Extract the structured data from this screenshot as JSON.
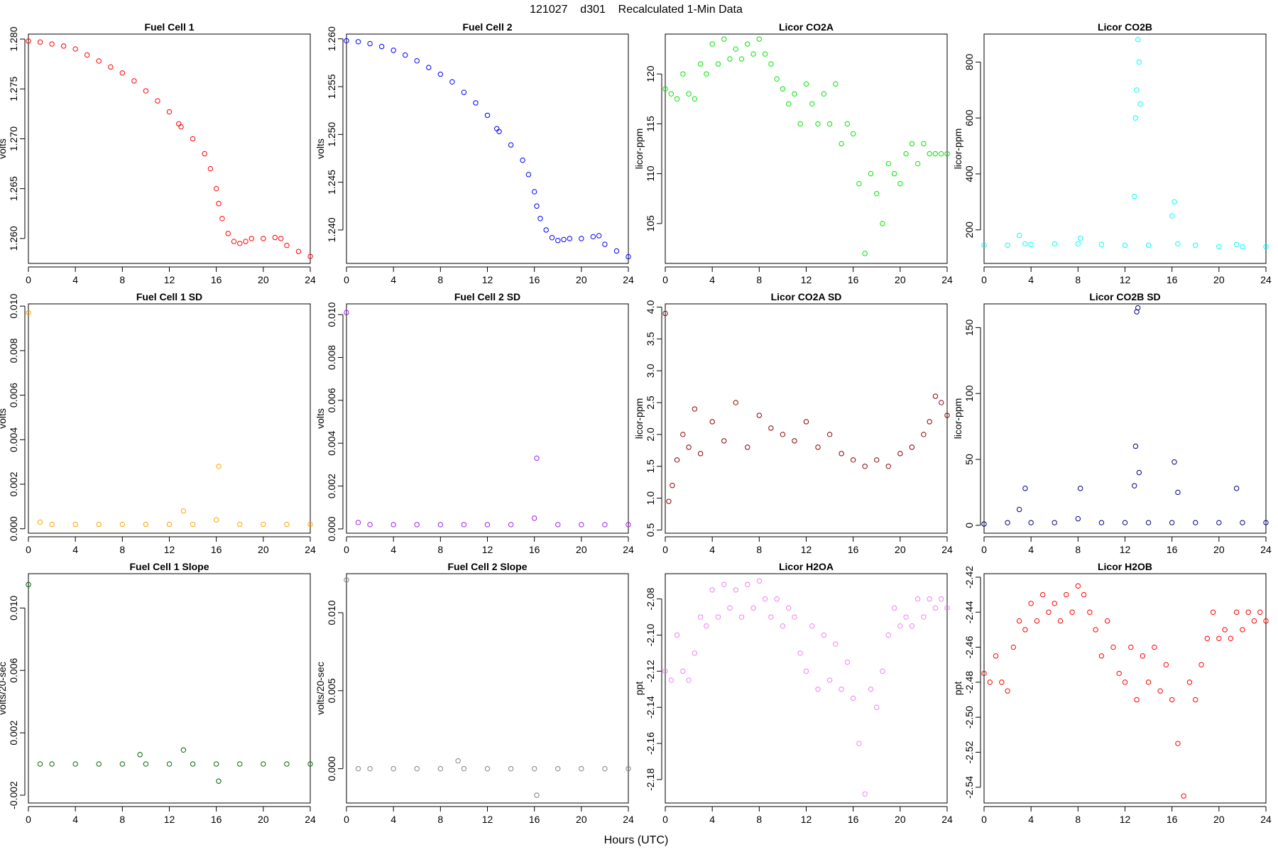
{
  "figure": {
    "title": "121027    d301    Recalculated 1-Min Data",
    "xlabel": "Hours (UTC)"
  },
  "chart_data": [
    {
      "type": "scatter",
      "title": "Fuel Cell 1",
      "ylabel": "volts",
      "color": "#ff0000",
      "xlim": [
        0,
        24
      ],
      "ylim": [
        1.2575,
        1.2805
      ],
      "xticks": [
        0,
        4,
        8,
        12,
        16,
        20,
        24
      ],
      "yticks": [
        1.26,
        1.265,
        1.27,
        1.275,
        1.28
      ],
      "ytick_labels": [
        "1.260",
        "1.265",
        "1.270",
        "1.275",
        "1.280"
      ],
      "x": [
        0,
        1,
        2,
        3,
        4,
        5,
        6,
        7,
        8,
        9,
        10,
        11,
        12,
        12.8,
        13,
        14,
        15,
        15.5,
        16,
        16.2,
        16.5,
        17,
        17.5,
        18,
        18.5,
        19,
        20,
        21,
        21.5,
        22,
        23,
        24
      ],
      "y": [
        1.2798,
        1.2797,
        1.2795,
        1.2793,
        1.279,
        1.2784,
        1.2778,
        1.2772,
        1.2766,
        1.2758,
        1.2748,
        1.2738,
        1.2727,
        1.2715,
        1.2712,
        1.27,
        1.2685,
        1.267,
        1.265,
        1.2635,
        1.262,
        1.2605,
        1.2597,
        1.2595,
        1.2597,
        1.26,
        1.26,
        1.2601,
        1.26,
        1.2593,
        1.2587,
        1.2582
      ]
    },
    {
      "type": "scatter",
      "title": "Fuel Cell 2",
      "ylabel": "volts",
      "color": "#0000ff",
      "xlim": [
        0,
        24
      ],
      "ylim": [
        1.2365,
        1.2605
      ],
      "xticks": [
        0,
        4,
        8,
        12,
        16,
        20,
        24
      ],
      "yticks": [
        1.24,
        1.245,
        1.25,
        1.255,
        1.26
      ],
      "ytick_labels": [
        "1.240",
        "1.245",
        "1.250",
        "1.255",
        "1.260"
      ],
      "x": [
        0,
        1,
        2,
        3,
        4,
        5,
        6,
        7,
        8,
        9,
        10,
        11,
        12,
        12.8,
        13,
        14,
        15,
        15.5,
        16,
        16.2,
        16.5,
        17,
        17.5,
        18,
        18.5,
        19,
        20,
        21,
        21.5,
        22,
        23,
        24
      ],
      "y": [
        1.2598,
        1.2597,
        1.2595,
        1.2592,
        1.2588,
        1.2583,
        1.2577,
        1.257,
        1.2563,
        1.2555,
        1.2544,
        1.2533,
        1.252,
        1.2506,
        1.2503,
        1.2489,
        1.2473,
        1.2458,
        1.244,
        1.2425,
        1.2412,
        1.24,
        1.2392,
        1.2389,
        1.239,
        1.2391,
        1.2391,
        1.2393,
        1.2394,
        1.2385,
        1.2378,
        1.2372
      ]
    },
    {
      "type": "scatter",
      "title": "Licor CO2A",
      "ylabel": "licor-ppm",
      "color": "#00e600",
      "xlim": [
        0,
        24
      ],
      "ylim": [
        101,
        124
      ],
      "xticks": [
        0,
        4,
        8,
        12,
        16,
        20,
        24
      ],
      "yticks": [
        105,
        110,
        115,
        120
      ],
      "ytick_labels": [
        "105",
        "110",
        "115",
        "120"
      ],
      "x": [
        0,
        0.5,
        1,
        1.5,
        2,
        2.5,
        3,
        3.5,
        4,
        4.5,
        5,
        5.5,
        6,
        6.5,
        7,
        7.5,
        8,
        8.5,
        9,
        9.5,
        10,
        10.5,
        11,
        11.5,
        12,
        12.5,
        13,
        13.5,
        14,
        14.5,
        15,
        15.5,
        16,
        16.5,
        17,
        17.5,
        18,
        18.5,
        19,
        19.5,
        20,
        20.5,
        21,
        21.5,
        22,
        22.5,
        23,
        23.5,
        24
      ],
      "y": [
        118.5,
        118,
        117.5,
        120,
        118,
        117.5,
        121,
        120,
        123,
        121,
        123.5,
        121.5,
        122.5,
        121.5,
        123,
        122,
        123.5,
        122,
        121,
        119.5,
        118.5,
        117,
        118,
        115,
        119,
        117,
        115,
        118,
        115,
        119,
        113,
        115,
        114,
        109,
        102,
        110,
        108,
        105,
        111,
        110,
        109,
        112,
        113,
        111,
        113,
        112,
        112,
        112,
        112
      ]
    },
    {
      "type": "scatter",
      "title": "Licor CO2B",
      "ylabel": "licor-ppm",
      "color": "#00ffff",
      "xlim": [
        0,
        24
      ],
      "ylim": [
        80,
        900
      ],
      "xticks": [
        0,
        4,
        8,
        12,
        16,
        20,
        24
      ],
      "yticks": [
        200,
        400,
        600,
        800
      ],
      "ytick_labels": [
        "200",
        "400",
        "600",
        "800"
      ],
      "x": [
        0,
        2,
        3,
        3.5,
        4,
        6,
        8,
        8.2,
        10,
        12,
        12.8,
        12.9,
        13,
        13.1,
        13.2,
        13.3,
        14,
        16,
        16.2,
        16.5,
        18,
        20,
        21.5,
        22,
        24
      ],
      "y": [
        145,
        145,
        180,
        150,
        148,
        150,
        150,
        170,
        148,
        145,
        320,
        600,
        700,
        880,
        800,
        650,
        145,
        250,
        300,
        150,
        145,
        140,
        148,
        140,
        140
      ]
    },
    {
      "type": "scatter",
      "title": "Fuel Cell 1 SD",
      "ylabel": "volts",
      "color": "#ffa500",
      "xlim": [
        0,
        24
      ],
      "ylim": [
        -0.0002,
        0.0101
      ],
      "xticks": [
        0,
        4,
        8,
        12,
        16,
        20,
        24
      ],
      "yticks": [
        0,
        0.002,
        0.004,
        0.006,
        0.008,
        0.01
      ],
      "ytick_labels": [
        "0.000",
        "0.002",
        "0.004",
        "0.006",
        "0.008",
        "0.010"
      ],
      "x": [
        0,
        1,
        2,
        4,
        6,
        8,
        10,
        12,
        13.2,
        14,
        16,
        16.2,
        18,
        20,
        22,
        24
      ],
      "y": [
        0.0097,
        0.0003,
        0.0002,
        0.0002,
        0.0002,
        0.0002,
        0.0002,
        0.0002,
        0.0008,
        0.0002,
        0.0004,
        0.0028,
        0.0002,
        0.0002,
        0.0002,
        0.0002
      ]
    },
    {
      "type": "scatter",
      "title": "Fuel Cell 2 SD",
      "ylabel": "volts",
      "color": "#a020f0",
      "xlim": [
        0,
        24
      ],
      "ylim": [
        -0.0002,
        0.0105
      ],
      "xticks": [
        0,
        4,
        8,
        12,
        16,
        20,
        24
      ],
      "yticks": [
        0,
        0.002,
        0.004,
        0.006,
        0.008,
        0.01
      ],
      "ytick_labels": [
        "0.000",
        "0.002",
        "0.004",
        "0.006",
        "0.008",
        "0.010"
      ],
      "x": [
        0,
        1,
        2,
        4,
        6,
        8,
        10,
        12,
        14,
        16,
        16.2,
        18,
        20,
        22,
        24
      ],
      "y": [
        0.0101,
        0.0003,
        0.0002,
        0.0002,
        0.0002,
        0.0002,
        0.0002,
        0.0002,
        0.0002,
        0.0005,
        0.0033,
        0.0002,
        0.0002,
        0.0002,
        0.0002
      ]
    },
    {
      "type": "scatter",
      "title": "Licor CO2A SD",
      "ylabel": "licor-ppm",
      "color": "#8b0000",
      "xlim": [
        0,
        24
      ],
      "ylim": [
        0.45,
        4.05
      ],
      "xticks": [
        0,
        4,
        8,
        12,
        16,
        20,
        24
      ],
      "yticks": [
        0.5,
        1.0,
        1.5,
        2.0,
        2.5,
        3.0,
        3.5,
        4.0
      ],
      "ytick_labels": [
        "0.5",
        "1.0",
        "1.5",
        "2.0",
        "2.5",
        "3.0",
        "3.5",
        "4.0"
      ],
      "x": [
        0,
        0.3,
        0.6,
        1,
        1.5,
        2,
        2.5,
        3,
        4,
        5,
        6,
        7,
        8,
        9,
        10,
        11,
        12,
        13,
        14,
        15,
        16,
        17,
        18,
        19,
        20,
        21,
        22,
        22.5,
        23,
        23.5,
        24
      ],
      "y": [
        3.9,
        0.95,
        1.2,
        1.6,
        2.0,
        1.8,
        2.4,
        1.7,
        2.2,
        1.9,
        2.5,
        1.8,
        2.3,
        2.1,
        2.0,
        1.9,
        2.2,
        1.8,
        2.0,
        1.7,
        1.6,
        1.5,
        1.6,
        1.5,
        1.7,
        1.8,
        2.0,
        2.2,
        2.6,
        2.5,
        2.3
      ]
    },
    {
      "type": "scatter",
      "title": "Licor CO2B SD",
      "ylabel": "licor-ppm",
      "color": "#000080",
      "xlim": [
        0,
        24
      ],
      "ylim": [
        -6,
        168
      ],
      "xticks": [
        0,
        4,
        8,
        12,
        16,
        20,
        24
      ],
      "yticks": [
        0,
        50,
        100,
        150
      ],
      "ytick_labels": [
        "0",
        "50",
        "100",
        "150"
      ],
      "x": [
        0,
        2,
        3,
        3.5,
        4,
        6,
        8,
        8.2,
        10,
        12,
        12.8,
        12.9,
        13,
        13.1,
        13.2,
        14,
        16,
        16.2,
        16.5,
        18,
        20,
        21.5,
        22,
        24
      ],
      "y": [
        1,
        2,
        12,
        28,
        2,
        2,
        5,
        28,
        2,
        2,
        30,
        60,
        162,
        165,
        40,
        2,
        2,
        48,
        25,
        2,
        2,
        28,
        2,
        2
      ]
    },
    {
      "type": "scatter",
      "title": "Fuel Cell 1 Slope",
      "ylabel": "volts/20-sec",
      "color": "#006400",
      "xlim": [
        0,
        24
      ],
      "ylim": [
        -0.0025,
        0.0122
      ],
      "xticks": [
        0,
        4,
        8,
        12,
        16,
        20,
        24
      ],
      "yticks": [
        -0.002,
        0.002,
        0.006,
        0.01
      ],
      "ytick_labels": [
        "-0.002",
        "0.002",
        "0.006",
        "0.010"
      ],
      "x": [
        0,
        1,
        2,
        4,
        6,
        8,
        9.5,
        10,
        12,
        13.2,
        14,
        16,
        16.2,
        18,
        20,
        22,
        24
      ],
      "y": [
        0.0115,
        0,
        0,
        0,
        0,
        0,
        0.0006,
        0,
        0,
        0.0009,
        0,
        0,
        -0.0011,
        0,
        0,
        0,
        0
      ]
    },
    {
      "type": "scatter",
      "title": "Fuel Cell 2 Slope",
      "ylabel": "volts/20-sec",
      "color": "#808080",
      "xlim": [
        0,
        24
      ],
      "ylim": [
        -0.0022,
        0.0125
      ],
      "xticks": [
        0,
        4,
        8,
        12,
        16,
        20,
        24
      ],
      "yticks": [
        0,
        0.005,
        0.01
      ],
      "ytick_labels": [
        "0.000",
        "0.005",
        "0.010"
      ],
      "x": [
        0,
        1,
        2,
        4,
        6,
        8,
        9.5,
        10,
        12,
        14,
        16,
        16.2,
        18,
        20,
        22,
        24
      ],
      "y": [
        0.0121,
        0,
        0,
        0,
        0,
        0,
        0.0005,
        0,
        0,
        0,
        0,
        -0.0017,
        0,
        0,
        0,
        0
      ]
    },
    {
      "type": "scatter",
      "title": "Licor H2OA",
      "ylabel": "ppt",
      "color": "#ee82ee",
      "xlim": [
        0,
        24
      ],
      "ylim": [
        -2.193,
        -2.066
      ],
      "xticks": [
        0,
        4,
        8,
        12,
        16,
        20,
        24
      ],
      "yticks": [
        -2.18,
        -2.16,
        -2.14,
        -2.12,
        -2.1,
        -2.08
      ],
      "ytick_labels": [
        "-2.18",
        "-2.16",
        "-2.14",
        "-2.12",
        "-2.10",
        "-2.08"
      ],
      "x": [
        0,
        0.5,
        1,
        1.5,
        2,
        2.5,
        3,
        3.5,
        4,
        4.5,
        5,
        5.5,
        6,
        6.5,
        7,
        7.5,
        8,
        8.5,
        9,
        9.5,
        10,
        10.5,
        11,
        11.5,
        12,
        12.5,
        13,
        13.5,
        14,
        14.5,
        15,
        15.5,
        16,
        16.5,
        17,
        17.5,
        18,
        18.5,
        19,
        19.5,
        20,
        20.5,
        21,
        21.5,
        22,
        22.5,
        23,
        23.5,
        24
      ],
      "y": [
        -2.12,
        -2.125,
        -2.1,
        -2.12,
        -2.125,
        -2.11,
        -2.09,
        -2.095,
        -2.075,
        -2.09,
        -2.072,
        -2.085,
        -2.075,
        -2.09,
        -2.072,
        -2.085,
        -2.07,
        -2.08,
        -2.09,
        -2.08,
        -2.095,
        -2.085,
        -2.09,
        -2.11,
        -2.12,
        -2.095,
        -2.13,
        -2.1,
        -2.125,
        -2.105,
        -2.13,
        -2.115,
        -2.135,
        -2.16,
        -2.188,
        -2.13,
        -2.14,
        -2.12,
        -2.1,
        -2.085,
        -2.095,
        -2.09,
        -2.095,
        -2.08,
        -2.09,
        -2.08,
        -2.085,
        -2.08,
        -2.085
      ]
    },
    {
      "type": "scatter",
      "title": "Licor H2OB",
      "ylabel": "ppt",
      "color": "#ff0000",
      "xlim": [
        0,
        24
      ],
      "ylim": [
        -2.549,
        -2.418
      ],
      "xticks": [
        0,
        4,
        8,
        12,
        16,
        20,
        24
      ],
      "yticks": [
        -2.54,
        -2.52,
        -2.5,
        -2.48,
        -2.46,
        -2.44,
        -2.42
      ],
      "ytick_labels": [
        "-2.54",
        "-2.52",
        "-2.50",
        "-2.48",
        "-2.46",
        "-2.44",
        "-2.42"
      ],
      "x": [
        0,
        0.5,
        1,
        1.5,
        2,
        2.5,
        3,
        3.5,
        4,
        4.5,
        5,
        5.5,
        6,
        6.5,
        7,
        7.5,
        8,
        8.5,
        9,
        9.5,
        10,
        10.5,
        11,
        11.5,
        12,
        12.5,
        13,
        13.5,
        14,
        14.5,
        15,
        15.5,
        16,
        16.5,
        17,
        17.5,
        18,
        18.5,
        19,
        19.5,
        20,
        20.5,
        21,
        21.5,
        22,
        22.5,
        23,
        23.5,
        24
      ],
      "y": [
        -2.475,
        -2.48,
        -2.465,
        -2.48,
        -2.485,
        -2.46,
        -2.445,
        -2.45,
        -2.435,
        -2.445,
        -2.43,
        -2.44,
        -2.435,
        -2.445,
        -2.43,
        -2.44,
        -2.425,
        -2.43,
        -2.44,
        -2.45,
        -2.465,
        -2.445,
        -2.46,
        -2.475,
        -2.48,
        -2.46,
        -2.49,
        -2.465,
        -2.48,
        -2.46,
        -2.485,
        -2.47,
        -2.49,
        -2.515,
        -2.545,
        -2.48,
        -2.49,
        -2.47,
        -2.455,
        -2.44,
        -2.455,
        -2.45,
        -2.455,
        -2.44,
        -2.45,
        -2.44,
        -2.445,
        -2.44,
        -2.445
      ]
    }
  ]
}
